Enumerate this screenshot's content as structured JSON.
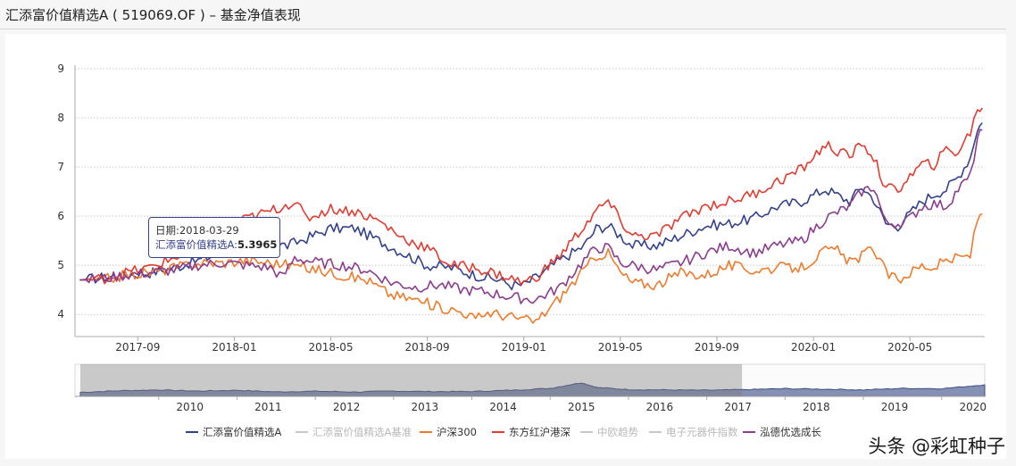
{
  "header": {
    "title": "汇添富价值精选A ( 519069.OF ) – 基金净值表现"
  },
  "tooltip": {
    "date_label": "日期:",
    "date_value": "2018-03-29",
    "series_label": "汇添富价值精选A:",
    "value": "5.3965"
  },
  "watermark": "头条 @彩虹种子",
  "chart_data": {
    "type": "line",
    "y_ticks": [
      4,
      5,
      6,
      7,
      8,
      9
    ],
    "ylim": [
      3.55,
      9.0
    ],
    "x_ticks": [
      "2017-09",
      "2018-01",
      "2018-05",
      "2018-09",
      "2019-01",
      "2019-05",
      "2019-09",
      "2020-01",
      "2020-05"
    ],
    "x_tick_months": [
      2,
      6,
      10,
      14,
      18,
      22,
      26,
      30,
      34
    ],
    "x_range_months": [
      -0.6,
      37.1
    ],
    "grid": "horizontal-dotted",
    "legend_position": "bottom",
    "series": [
      {
        "name": "汇添富价值精选A",
        "color": "#34418c",
        "visible": true,
        "points": [
          [
            -0.4,
            4.7
          ],
          [
            0.5,
            4.75
          ],
          [
            1.5,
            4.8
          ],
          [
            2.5,
            4.85
          ],
          [
            3.5,
            4.95
          ],
          [
            4.5,
            5.1
          ],
          [
            5.5,
            5.25
          ],
          [
            6.5,
            5.35
          ],
          [
            7.5,
            5.45
          ],
          [
            8.2,
            5.4
          ],
          [
            9,
            5.55
          ],
          [
            10,
            5.75
          ],
          [
            11,
            5.75
          ],
          [
            12,
            5.5
          ],
          [
            13,
            5.25
          ],
          [
            14,
            5.0
          ],
          [
            15,
            4.95
          ],
          [
            16,
            4.8
          ],
          [
            17,
            4.7
          ],
          [
            17.5,
            4.6
          ],
          [
            18,
            4.6
          ],
          [
            18.5,
            4.75
          ],
          [
            19.5,
            5.1
          ],
          [
            20.5,
            5.4
          ],
          [
            21,
            5.75
          ],
          [
            21.5,
            5.8
          ],
          [
            22,
            5.6
          ],
          [
            22.5,
            5.4
          ],
          [
            23.5,
            5.4
          ],
          [
            24.5,
            5.6
          ],
          [
            25.5,
            5.8
          ],
          [
            26.5,
            5.85
          ],
          [
            27.5,
            5.95
          ],
          [
            28.5,
            6.2
          ],
          [
            29.5,
            6.3
          ],
          [
            30.5,
            6.55
          ],
          [
            31.5,
            6.3
          ],
          [
            32,
            6.6
          ],
          [
            32.5,
            6.35
          ],
          [
            33,
            5.85
          ],
          [
            33.5,
            5.8
          ],
          [
            34,
            6.05
          ],
          [
            34.5,
            6.3
          ],
          [
            35,
            6.45
          ],
          [
            35.5,
            6.55
          ],
          [
            36,
            6.8
          ],
          [
            36.5,
            7.2
          ],
          [
            36.8,
            7.8
          ],
          [
            37.0,
            7.9
          ]
        ]
      },
      {
        "name": "汇添富价值精选A基准",
        "color": "#d0d0d0",
        "visible": false,
        "points": []
      },
      {
        "name": "沪深300",
        "color": "#ee7b2c",
        "visible": true,
        "points": [
          [
            -0.4,
            4.7
          ],
          [
            0.5,
            4.7
          ],
          [
            1.5,
            4.8
          ],
          [
            2.5,
            4.85
          ],
          [
            3.5,
            4.95
          ],
          [
            4.5,
            5.05
          ],
          [
            5.5,
            5.05
          ],
          [
            6.5,
            5.1
          ],
          [
            7.5,
            5.05
          ],
          [
            8.5,
            5.0
          ],
          [
            9.5,
            4.9
          ],
          [
            10.5,
            4.8
          ],
          [
            11.5,
            4.7
          ],
          [
            12.5,
            4.4
          ],
          [
            13.5,
            4.3
          ],
          [
            14.5,
            4.15
          ],
          [
            15.5,
            4.05
          ],
          [
            16,
            3.9
          ],
          [
            16.5,
            4.05
          ],
          [
            17.5,
            3.95
          ],
          [
            18.5,
            3.85
          ],
          [
            19.5,
            4.35
          ],
          [
            20.5,
            4.9
          ],
          [
            21,
            5.2
          ],
          [
            21.5,
            5.25
          ],
          [
            22,
            4.85
          ],
          [
            22.5,
            4.65
          ],
          [
            23.5,
            4.6
          ],
          [
            24.5,
            4.85
          ],
          [
            25.5,
            4.8
          ],
          [
            26.5,
            5.0
          ],
          [
            27.5,
            4.9
          ],
          [
            28.5,
            4.95
          ],
          [
            29.5,
            4.95
          ],
          [
            30.5,
            5.3
          ],
          [
            31,
            5.3
          ],
          [
            31.5,
            5.05
          ],
          [
            32.5,
            5.35
          ],
          [
            33,
            4.85
          ],
          [
            33.5,
            4.7
          ],
          [
            34,
            4.85
          ],
          [
            34.5,
            5.0
          ],
          [
            35,
            4.95
          ],
          [
            35.5,
            5.1
          ],
          [
            36,
            5.15
          ],
          [
            36.5,
            5.2
          ],
          [
            36.8,
            5.95
          ],
          [
            37.0,
            6.05
          ]
        ]
      },
      {
        "name": "东方红沪港深",
        "color": "#e23b31",
        "visible": true,
        "points": [
          [
            -0.4,
            4.7
          ],
          [
            0.5,
            4.72
          ],
          [
            1.5,
            4.85
          ],
          [
            2.5,
            4.95
          ],
          [
            3.5,
            5.15
          ],
          [
            4.5,
            5.35
          ],
          [
            5.5,
            5.7
          ],
          [
            6.5,
            5.95
          ],
          [
            7.5,
            6.1
          ],
          [
            8.5,
            6.3
          ],
          [
            9,
            5.95
          ],
          [
            10,
            6.15
          ],
          [
            11,
            6.1
          ],
          [
            12,
            5.9
          ],
          [
            13,
            5.55
          ],
          [
            14,
            5.35
          ],
          [
            15,
            5.0
          ],
          [
            16,
            4.95
          ],
          [
            17,
            4.8
          ],
          [
            18,
            4.65
          ],
          [
            18.5,
            4.75
          ],
          [
            19.5,
            5.2
          ],
          [
            20.5,
            5.8
          ],
          [
            21,
            6.1
          ],
          [
            21.5,
            6.3
          ],
          [
            22,
            5.9
          ],
          [
            22.5,
            5.6
          ],
          [
            23.5,
            5.6
          ],
          [
            24.5,
            5.95
          ],
          [
            25.5,
            6.2
          ],
          [
            26.5,
            6.3
          ],
          [
            27.5,
            6.45
          ],
          [
            28.5,
            6.7
          ],
          [
            29.5,
            6.95
          ],
          [
            30.5,
            7.45
          ],
          [
            31.5,
            7.2
          ],
          [
            32,
            7.5
          ],
          [
            32.5,
            7.2
          ],
          [
            33,
            6.55
          ],
          [
            33.5,
            6.55
          ],
          [
            34,
            6.8
          ],
          [
            34.5,
            7.05
          ],
          [
            35,
            7.05
          ],
          [
            35.5,
            7.35
          ],
          [
            36,
            7.3
          ],
          [
            36.5,
            7.7
          ],
          [
            36.8,
            8.2
          ],
          [
            37.0,
            8.2
          ]
        ]
      },
      {
        "name": "中欧趋势",
        "color": "#d0d0d0",
        "visible": false,
        "points": []
      },
      {
        "name": "电子元器件指数",
        "color": "#d0d0d0",
        "visible": false,
        "points": []
      },
      {
        "name": "泓德优选成长",
        "color": "#8b3c8e",
        "visible": true,
        "points": [
          [
            -0.4,
            4.7
          ],
          [
            0.5,
            4.72
          ],
          [
            1.5,
            4.8
          ],
          [
            2.5,
            4.85
          ],
          [
            3.5,
            4.9
          ],
          [
            4.5,
            5.0
          ],
          [
            5.5,
            5.05
          ],
          [
            6.5,
            5.0
          ],
          [
            7.5,
            4.95
          ],
          [
            8,
            4.75
          ],
          [
            8.5,
            5.15
          ],
          [
            9.5,
            5.05
          ],
          [
            10.5,
            5.0
          ],
          [
            11.5,
            4.9
          ],
          [
            12.5,
            4.65
          ],
          [
            13.5,
            4.55
          ],
          [
            14.5,
            4.6
          ],
          [
            15.5,
            4.5
          ],
          [
            16.5,
            4.45
          ],
          [
            17.5,
            4.35
          ],
          [
            18.5,
            4.3
          ],
          [
            19.5,
            4.55
          ],
          [
            20.5,
            5.1
          ],
          [
            21,
            5.35
          ],
          [
            21.5,
            5.35
          ],
          [
            22,
            5.05
          ],
          [
            22.5,
            5.0
          ],
          [
            23.5,
            4.9
          ],
          [
            24.5,
            5.05
          ],
          [
            25.5,
            5.25
          ],
          [
            26.5,
            5.4
          ],
          [
            27.5,
            5.25
          ],
          [
            28.5,
            5.4
          ],
          [
            29.5,
            5.5
          ],
          [
            30.5,
            5.95
          ],
          [
            31.5,
            6.2
          ],
          [
            32,
            6.5
          ],
          [
            32.5,
            6.6
          ],
          [
            33,
            5.85
          ],
          [
            33.5,
            5.85
          ],
          [
            34,
            5.95
          ],
          [
            34.5,
            6.2
          ],
          [
            35,
            6.25
          ],
          [
            35.5,
            6.2
          ],
          [
            36,
            6.55
          ],
          [
            36.5,
            6.8
          ],
          [
            36.8,
            7.6
          ],
          [
            37.0,
            7.75
          ]
        ]
      }
    ],
    "navigator": {
      "x_ticks": [
        "2010",
        "2011",
        "2012",
        "2013",
        "2014",
        "2015",
        "2016",
        "2017",
        "2018",
        "2019",
        "2020"
      ],
      "x_tick_years": [
        2010,
        2011,
        2012,
        2013,
        2014,
        2015,
        2016,
        2017,
        2018,
        2019,
        2020
      ],
      "x_range_years": [
        2009.0,
        2020.55
      ],
      "selected_range_years": [
        2009.0,
        2017.45
      ],
      "points": [
        [
          2009.0,
          0.25
        ],
        [
          2009.5,
          0.35
        ],
        [
          2010.0,
          0.4
        ],
        [
          2010.5,
          0.33
        ],
        [
          2011.0,
          0.38
        ],
        [
          2011.5,
          0.28
        ],
        [
          2012.0,
          0.32
        ],
        [
          2012.5,
          0.27
        ],
        [
          2013.0,
          0.33
        ],
        [
          2013.5,
          0.3
        ],
        [
          2014.0,
          0.3
        ],
        [
          2014.5,
          0.38
        ],
        [
          2015.0,
          0.5
        ],
        [
          2015.4,
          0.85
        ],
        [
          2015.6,
          0.55
        ],
        [
          2016.0,
          0.42
        ],
        [
          2016.5,
          0.4
        ],
        [
          2017.0,
          0.38
        ],
        [
          2017.5,
          0.42
        ],
        [
          2018.0,
          0.48
        ],
        [
          2018.5,
          0.45
        ],
        [
          2019.0,
          0.4
        ],
        [
          2019.5,
          0.5
        ],
        [
          2020.0,
          0.48
        ],
        [
          2020.55,
          0.72
        ]
      ]
    }
  }
}
